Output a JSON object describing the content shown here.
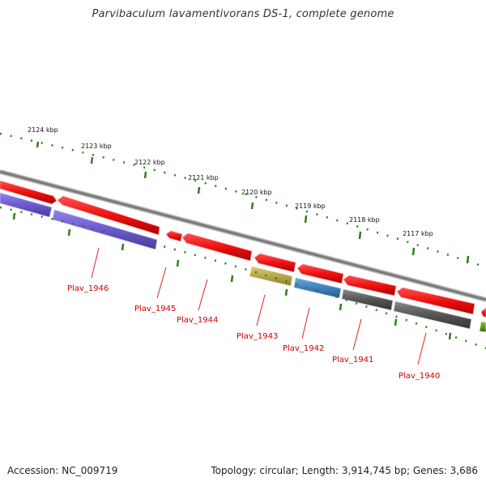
{
  "title": "Parvibaculum lavamentivorans DS-1, complete genome",
  "footer": {
    "accession": "Accession: NC_009719",
    "summary": "Topology: circular; Length: 3,914,745 bp; Genes: 3,686"
  },
  "kbp_ticks": [
    "2124 kbp",
    "2123 kbp",
    "2122 kbp",
    "2121 kbp",
    "2120 kbp",
    "2119 kbp",
    "2118 kbp",
    "2117 kbp"
  ],
  "gene_labels": [
    "Plav_1946",
    "Plav_1945",
    "Plav_1944",
    "Plav_1943",
    "Plav_1942",
    "Plav_1941",
    "Plav_1940"
  ],
  "colors": {
    "forward_gene": "#ee1111",
    "purple_gene": "#6a5acd",
    "olive_gene": "#b5a84a",
    "blue_gene": "#3f7fbf",
    "gray_gene": "#555555",
    "green_gene": "#5a8a1a",
    "scale_dots": "#2e7d1e",
    "backbone": "#888888",
    "label_red": "#cc0000"
  }
}
